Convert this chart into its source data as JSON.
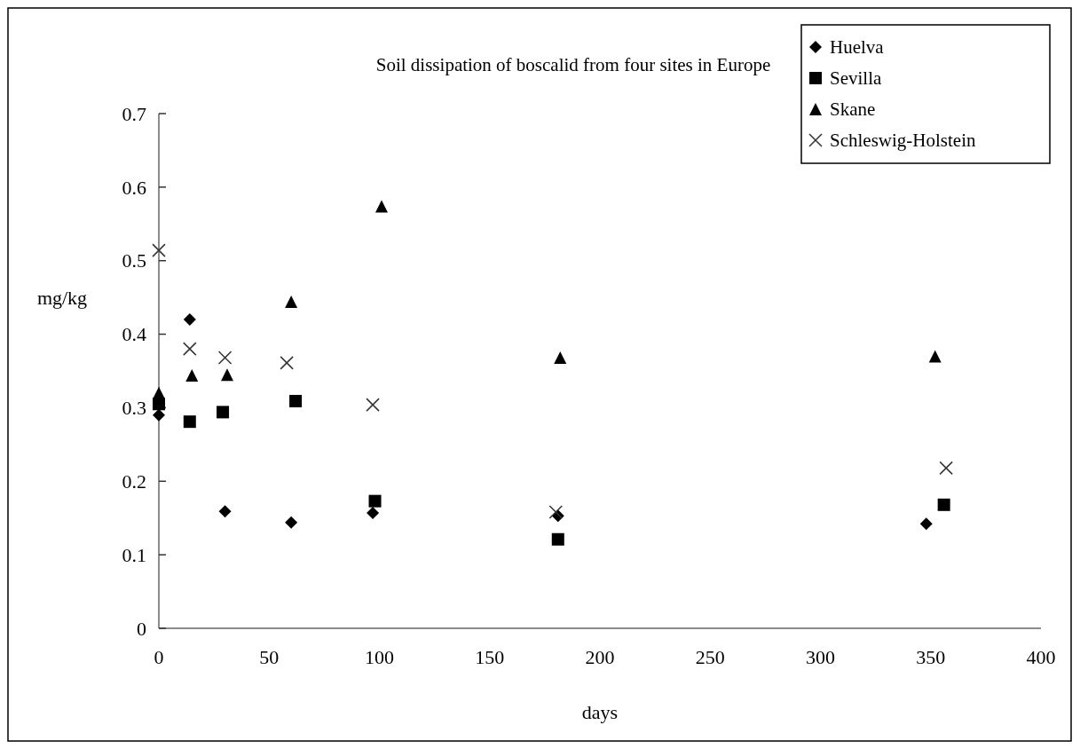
{
  "chart_data": {
    "type": "scatter",
    "title": "Soil dissipation of boscalid from four sites in Europe",
    "xlabel": "days",
    "ylabel": "mg/kg",
    "xlim": [
      0,
      400
    ],
    "xticks": [
      0,
      50,
      100,
      150,
      200,
      250,
      300,
      350,
      400
    ],
    "ylim": [
      0,
      0.7
    ],
    "yticks": [
      0,
      0.1,
      0.2,
      0.3,
      0.4,
      0.5,
      0.6,
      0.7
    ],
    "grid": false,
    "legend": "top right",
    "series": [
      {
        "name": "Huelva",
        "color": "#000000",
        "marker": "diamond",
        "x": [
          0,
          14,
          30,
          60,
          97,
          181,
          348
        ],
        "values": [
          0.29,
          0.42,
          0.159,
          0.144,
          0.157,
          0.153,
          0.142
        ]
      },
      {
        "name": "Sevilla",
        "color": "#000000",
        "marker": "square",
        "x": [
          0,
          14,
          29,
          62,
          98,
          181,
          356
        ],
        "values": [
          0.305,
          0.281,
          0.294,
          0.309,
          0.173,
          0.121,
          0.168
        ]
      },
      {
        "name": "Skane",
        "color": "#000000",
        "marker": "triangle",
        "x": [
          0,
          15,
          31,
          60,
          101,
          182,
          352
        ],
        "values": [
          0.32,
          0.344,
          0.345,
          0.444,
          0.574,
          0.368,
          0.37
        ]
      },
      {
        "name": "Schleswig-Holstein",
        "color": "#333333",
        "marker": "cross",
        "x": [
          0,
          14,
          30,
          58,
          97,
          180,
          357
        ],
        "values": [
          0.514,
          0.38,
          0.368,
          0.361,
          0.304,
          0.158,
          0.218
        ]
      }
    ]
  }
}
